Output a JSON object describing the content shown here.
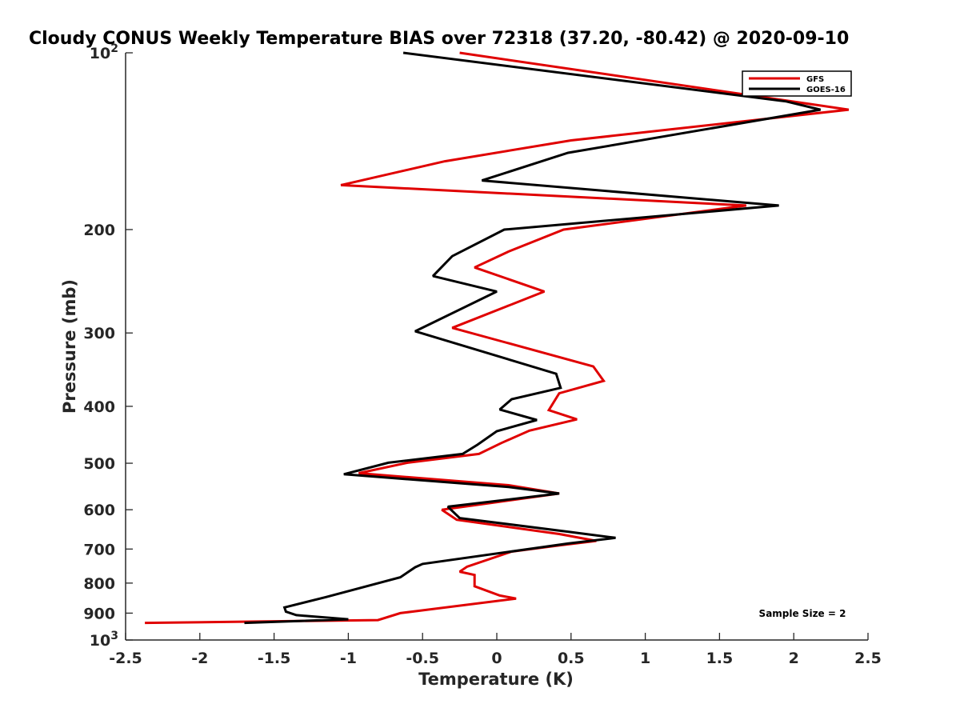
{
  "chart_data": {
    "type": "line",
    "title": "Cloudy CONUS Weekly Temperature BIAS over 72318 (37.20, -80.42) @ 2020-09-10",
    "xlabel": "Temperature (K)",
    "ylabel": "Pressure (mb)",
    "xlim": [
      -2.5,
      2.5
    ],
    "ylim": [
      100,
      1000
    ],
    "yscale": "log",
    "y_reversed": true,
    "xticks": [
      "-2.5",
      "-2",
      "-1.5",
      "-1",
      "-0.5",
      "0",
      "0.5",
      "1",
      "1.5",
      "2",
      "2.5"
    ],
    "xtick_values": [
      -2.5,
      -2,
      -1.5,
      -1,
      -0.5,
      0,
      0.5,
      1,
      1.5,
      2,
      2.5
    ],
    "yticks": [
      {
        "value": 100,
        "base": "10",
        "exp": "2"
      },
      {
        "value": 200,
        "label": "200"
      },
      {
        "value": 300,
        "label": "300"
      },
      {
        "value": 400,
        "label": "400"
      },
      {
        "value": 500,
        "label": "500"
      },
      {
        "value": 600,
        "label": "600"
      },
      {
        "value": 700,
        "label": "700"
      },
      {
        "value": 800,
        "label": "800"
      },
      {
        "value": 900,
        "label": "900"
      },
      {
        "value": 1000,
        "base": "10",
        "exp": "3"
      }
    ],
    "legend_position": "top-right",
    "annotation": "Sample Size = 2",
    "series": [
      {
        "name": "GFS",
        "color": "#e00000",
        "points": [
          [
            -0.25,
            100
          ],
          [
            2.37,
            125
          ],
          [
            0.5,
            141
          ],
          [
            -0.35,
            153
          ],
          [
            -1.05,
            168
          ],
          [
            1.68,
            182
          ],
          [
            0.45,
            200
          ],
          [
            0.08,
            218
          ],
          [
            -0.15,
            232
          ],
          [
            0.32,
            255
          ],
          [
            -0.3,
            294
          ],
          [
            0.65,
            342
          ],
          [
            0.72,
            362
          ],
          [
            0.42,
            380
          ],
          [
            0.35,
            406
          ],
          [
            0.54,
            421
          ],
          [
            0.22,
            440
          ],
          [
            0.03,
            462
          ],
          [
            -0.12,
            482
          ],
          [
            -0.6,
            499
          ],
          [
            -0.93,
            520
          ],
          [
            0.08,
            545
          ],
          [
            0.42,
            563
          ],
          [
            -0.37,
            600
          ],
          [
            -0.27,
            624
          ],
          [
            0.42,
            660
          ],
          [
            0.67,
            678
          ],
          [
            0.42,
            690
          ],
          [
            0.1,
            707
          ],
          [
            -0.2,
            750
          ],
          [
            -0.25,
            765
          ],
          [
            -0.15,
            775
          ],
          [
            -0.15,
            810
          ],
          [
            0.02,
            840
          ],
          [
            0.13,
            850
          ],
          [
            -0.65,
            900
          ],
          [
            -0.8,
            925
          ],
          [
            -2.37,
            935
          ]
        ]
      },
      {
        "name": "GOES-16",
        "color": "#000000",
        "points": [
          [
            -0.63,
            100
          ],
          [
            1.95,
            121
          ],
          [
            2.18,
            125
          ],
          [
            0.48,
            148
          ],
          [
            -0.1,
            165
          ],
          [
            1.9,
            182
          ],
          [
            0.05,
            200
          ],
          [
            -0.3,
            222
          ],
          [
            -0.43,
            240
          ],
          [
            0.0,
            255
          ],
          [
            -0.55,
            298
          ],
          [
            0.4,
            352
          ],
          [
            0.43,
            372
          ],
          [
            0.1,
            389
          ],
          [
            0.02,
            405
          ],
          [
            0.27,
            422
          ],
          [
            0.0,
            441
          ],
          [
            -0.13,
            465
          ],
          [
            -0.23,
            482
          ],
          [
            -0.73,
            499
          ],
          [
            -1.03,
            522
          ],
          [
            0.08,
            549
          ],
          [
            0.42,
            563
          ],
          [
            -0.33,
            593
          ],
          [
            -0.25,
            620
          ],
          [
            0.5,
            655
          ],
          [
            0.8,
            670
          ],
          [
            0.48,
            685
          ],
          [
            -0.5,
            742
          ],
          [
            -0.55,
            752
          ],
          [
            -0.65,
            782
          ],
          [
            -1.15,
            845
          ],
          [
            -1.43,
            880
          ],
          [
            -1.42,
            895
          ],
          [
            -1.35,
            907
          ],
          [
            -1.0,
            922
          ],
          [
            -1.7,
            935
          ]
        ]
      }
    ]
  }
}
